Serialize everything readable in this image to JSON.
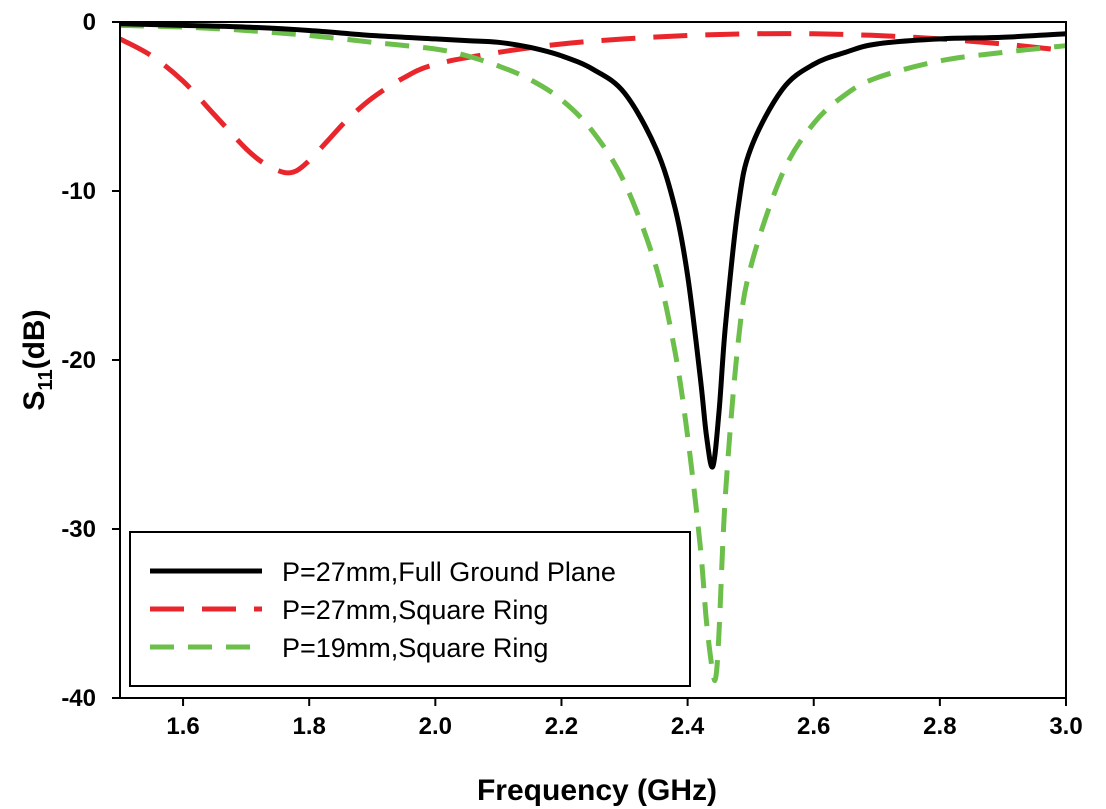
{
  "chart_data": {
    "type": "line",
    "title": "",
    "xlabel": "Frequency (GHz)",
    "ylabel": {
      "main": "S",
      "sub": "11",
      "unit": "(dB)"
    },
    "xlim": [
      1.5,
      3.0
    ],
    "ylim": [
      -40,
      0
    ],
    "xticks": [
      "1.6",
      "1.8",
      "2.0",
      "2.2",
      "2.4",
      "2.6",
      "2.8",
      "3.0"
    ],
    "yticks": [
      "0",
      "-10",
      "-20",
      "-30",
      "-40"
    ],
    "grid": false,
    "legend_position": "bottom-left",
    "series": [
      {
        "name": "P=27mm,Full Ground Plane",
        "color": "#000000",
        "style": "solid",
        "x": [
          1.5,
          1.6,
          1.7,
          1.8,
          1.9,
          2.0,
          2.05,
          2.1,
          2.15,
          2.2,
          2.25,
          2.3,
          2.35,
          2.38,
          2.4,
          2.42,
          2.43,
          2.44,
          2.45,
          2.46,
          2.48,
          2.5,
          2.55,
          2.6,
          2.65,
          2.7,
          2.8,
          2.9,
          3.0
        ],
        "y": [
          -0.1,
          -0.2,
          -0.3,
          -0.5,
          -0.8,
          -1.0,
          -1.1,
          -1.2,
          -1.5,
          -2.0,
          -2.8,
          -4.2,
          -7.5,
          -11.0,
          -15.0,
          -21.0,
          -24.5,
          -26.3,
          -23.0,
          -18.0,
          -11.0,
          -7.5,
          -4.0,
          -2.5,
          -1.8,
          -1.3,
          -1.0,
          -0.9,
          -0.7
        ]
      },
      {
        "name": "P=27mm,Square Ring",
        "color": "#e8262c",
        "style": "dashed",
        "x": [
          1.5,
          1.55,
          1.6,
          1.65,
          1.7,
          1.73,
          1.76,
          1.78,
          1.8,
          1.83,
          1.86,
          1.9,
          1.95,
          2.0,
          2.1,
          2.2,
          2.3,
          2.4,
          2.5,
          2.6,
          2.7,
          2.8,
          2.9,
          3.0
        ],
        "y": [
          -1.0,
          -2.0,
          -3.5,
          -5.5,
          -7.5,
          -8.4,
          -8.9,
          -8.8,
          -8.2,
          -7.0,
          -5.8,
          -4.5,
          -3.3,
          -2.5,
          -1.8,
          -1.3,
          -1.0,
          -0.8,
          -0.7,
          -0.7,
          -0.8,
          -1.0,
          -1.3,
          -1.7
        ]
      },
      {
        "name": "P=19mm,Square Ring",
        "color": "#6cbf4a",
        "style": "dashed",
        "x": [
          1.5,
          1.6,
          1.7,
          1.8,
          1.9,
          2.0,
          2.05,
          2.1,
          2.15,
          2.2,
          2.25,
          2.3,
          2.35,
          2.38,
          2.4,
          2.42,
          2.43,
          2.44,
          2.445,
          2.45,
          2.46,
          2.48,
          2.5,
          2.55,
          2.6,
          2.65,
          2.7,
          2.8,
          2.9,
          3.0
        ],
        "y": [
          -0.2,
          -0.3,
          -0.5,
          -0.8,
          -1.2,
          -1.6,
          -2.0,
          -2.6,
          -3.4,
          -4.6,
          -6.5,
          -9.5,
          -14.5,
          -19.5,
          -24.5,
          -31.0,
          -35.5,
          -38.5,
          -38.7,
          -36.0,
          -28.0,
          -19.0,
          -14.5,
          -9.0,
          -6.0,
          -4.3,
          -3.3,
          -2.3,
          -1.8,
          -1.4
        ]
      }
    ]
  }
}
